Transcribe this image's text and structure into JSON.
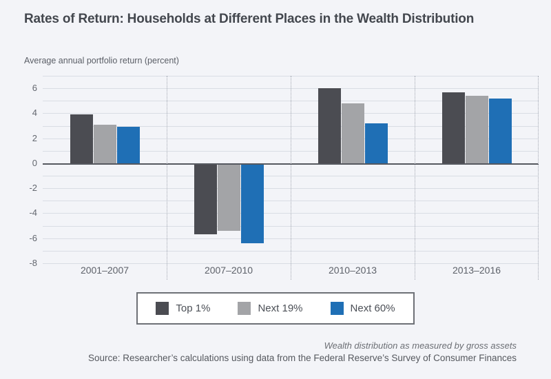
{
  "title": "Rates of Return: Households at Different Places in the Wealth Distribution",
  "axis_title": "Average annual portfolio return (percent)",
  "chart_data": {
    "type": "bar",
    "categories": [
      "2001–2007",
      "2007–2010",
      "2010–2013",
      "2013–2016"
    ],
    "series": [
      {
        "name": "Top 1%",
        "color": "#4b4c52",
        "values": [
          3.9,
          -5.6,
          6.0,
          5.7
        ]
      },
      {
        "name": "Next 19%",
        "color": "#a3a4a7",
        "values": [
          3.1,
          -5.3,
          4.8,
          5.4
        ]
      },
      {
        "name": "Next 60%",
        "color": "#1f6fb5",
        "values": [
          2.9,
          -6.3,
          3.2,
          5.2
        ]
      }
    ],
    "xlabel": "",
    "ylabel": "Average annual portfolio return (percent)",
    "ylim": [
      -8,
      7
    ],
    "yticks": [
      6,
      4,
      2,
      0,
      -2,
      -4,
      -6,
      -8
    ],
    "grid": "horizontal gridlines every 1 unit; dotted vertical separators between categories",
    "legend_position": "bottom"
  },
  "footnote": "Wealth distribution as measured by gross assets",
  "source": "Source: Researcher’s calculations using data from the Federal Reserve’s Survey of Consumer Finances",
  "colors": {
    "background": "#f3f4f8",
    "gridline": "#d9dde4",
    "zero_line": "#55585f",
    "separator_dotted": "#a4a8b2",
    "title_text": "#43474e",
    "tick_text": "#63676f",
    "legend_border": "#6d7076",
    "legend_background": "#ffffff"
  }
}
